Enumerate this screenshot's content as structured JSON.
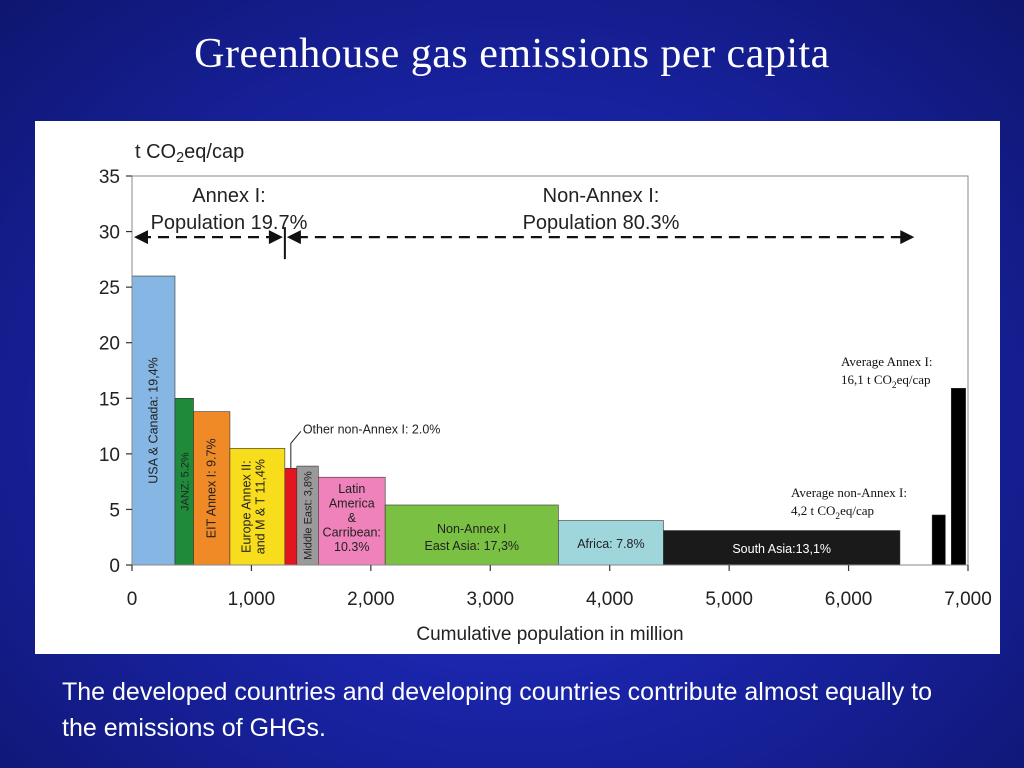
{
  "title": "Greenhouse gas emissions per capita",
  "caption": "The developed countries and developing countries contribute almost equally to the emissions of GHGs.",
  "chart_data": {
    "type": "bar",
    "ylabel_prefix": "t CO",
    "ylabel_sub": "2",
    "ylabel_suffix": "eq/cap",
    "xlabel": "Cumulative population in million",
    "xlim": [
      0,
      7000
    ],
    "ylim": [
      0,
      35
    ],
    "xticks": [
      "0",
      "1,000",
      "2,000",
      "3,000",
      "4,000",
      "5,000",
      "6,000",
      "7,000"
    ],
    "yticks": [
      "0",
      "5",
      "10",
      "15",
      "20",
      "25",
      "30",
      "35"
    ],
    "annex1_line1": "Annex I:",
    "annex1_line2": "Population 19.7%",
    "nonannex_line1": "Non-Annex I:",
    "nonannex_line2": "Population 80.3%",
    "bars": [
      {
        "label": "USA & Canada: 19,4%",
        "x0": 0,
        "x1": 360,
        "value": 26.0,
        "color": "#86b6e4",
        "vertical": true
      },
      {
        "label": "JANZ: 5.2%",
        "x0": 360,
        "x1": 515,
        "value": 15.0,
        "color": "#1e8a3a",
        "vertical": true
      },
      {
        "label": "EIT Annex I: 9.7%",
        "x0": 515,
        "x1": 820,
        "value": 13.8,
        "color": "#f08a26",
        "vertical": true
      },
      {
        "label": "Europe Annex II: and M & T 11,4%",
        "x0": 820,
        "x1": 1280,
        "value": 10.5,
        "color": "#f7dd1c",
        "vertical": true
      },
      {
        "label": "",
        "x0": 1280,
        "x1": 1380,
        "value": 8.7,
        "color": "#e3161f",
        "vertical": true
      },
      {
        "label": "Middle East: 3,8%",
        "x0": 1380,
        "x1": 1560,
        "value": 8.9,
        "color": "#9a9a9a",
        "vertical": true
      },
      {
        "label": "Latin America & Carribean: 10.3%",
        "x0": 1560,
        "x1": 2120,
        "value": 7.9,
        "color": "#ef82ba",
        "vertical": false
      },
      {
        "label": "Non-Annex I East Asia: 17,3%",
        "x0": 2120,
        "x1": 3570,
        "value": 5.4,
        "color": "#7ac143",
        "vertical": false
      },
      {
        "label": "Africa: 7.8%",
        "x0": 3570,
        "x1": 4450,
        "value": 4.0,
        "color": "#9fd6dc",
        "vertical": false
      },
      {
        "label": "South Asia:13,1%",
        "x0": 4450,
        "x1": 6430,
        "value": 3.1,
        "color": "#1a1a1a",
        "vertical": false
      },
      {
        "label": "",
        "x0": 6700,
        "x1": 6810,
        "value": 4.5,
        "color": "#000000",
        "vertical": false
      },
      {
        "label": "",
        "x0": 6860,
        "x1": 6980,
        "value": 15.9,
        "color": "#000000",
        "vertical": false
      }
    ],
    "other_nonannex_label": "Other non-Annex I: 2.0%",
    "avg_annex_line1": "Average Annex I:",
    "avg_annex_line2_pre": "16,1 t CO",
    "avg_annex_line2_post": "eq/cap",
    "avg_nonannex_line1": "Average non-Annex I:",
    "avg_nonannex_line2_pre": "4,2 t CO",
    "avg_nonannex_line2_post": "eq/cap",
    "subscript_2": "2"
  }
}
